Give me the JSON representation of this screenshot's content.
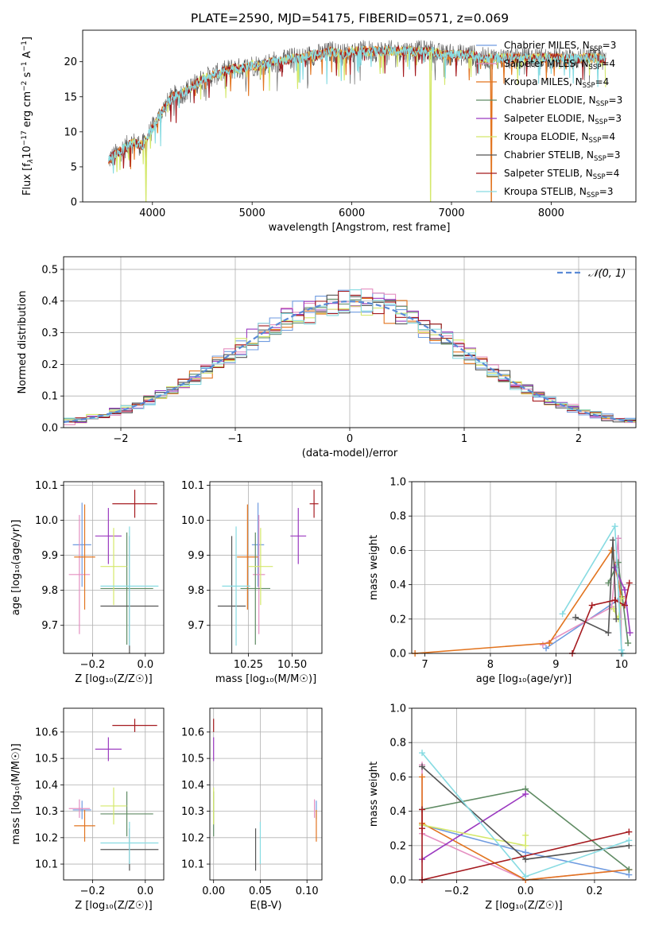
{
  "figure": {
    "title": "PLATE=2590, MJD=54175, FIBERID=0571, z=0.069"
  },
  "model_colors": {
    "Chabrier MILES": "#6f9be0",
    "Salpeter MILES": "#e58fc1",
    "Kroupa MILES": "#e2741f",
    "Chabrier ELODIE": "#5f8b63",
    "Salpeter ELODIE": "#9b39c0",
    "Kroupa ELODIE": "#d4e86b",
    "Chabrier STELIB": "#555555",
    "Salpeter STELIB": "#a51a1f",
    "Kroupa STELIB": "#87dbe2"
  },
  "chart_data": [
    {
      "id": "spectrum",
      "type": "line",
      "xlabel": "wavelength [Angstrom, rest frame]",
      "ylabel_parts": {
        "a": "Flux [f",
        "b": "λ",
        "c": "10",
        "d": "−17",
        "e": " erg cm",
        "f": "−2",
        "g": " s",
        "h": "−1",
        "i": " A",
        "j": "−1",
        "k": "]"
      },
      "xlim": [
        3300,
        8850
      ],
      "ylim": [
        0,
        24.5
      ],
      "xticks": [
        4000,
        5000,
        6000,
        7000,
        8000
      ],
      "yticks": [
        0,
        5,
        10,
        15,
        20
      ],
      "legend_position": "top-right",
      "legend": [
        {
          "name": "Chabrier MILES",
          "nssp": "3",
          "color": "#6f9be0"
        },
        {
          "name": "Salpeter MILES",
          "nssp": "4",
          "color": "#e58fc1"
        },
        {
          "name": "Kroupa MILES",
          "nssp": "4",
          "color": "#e2741f"
        },
        {
          "name": "Chabrier ELODIE",
          "nssp": "3",
          "color": "#5f8b63"
        },
        {
          "name": "Salpeter ELODIE",
          "nssp": "3",
          "color": "#9b39c0"
        },
        {
          "name": "Kroupa ELODIE",
          "nssp": "4",
          "color": "#d4e86b"
        },
        {
          "name": "Chabrier STELIB",
          "nssp": "3",
          "color": "#555555"
        },
        {
          "name": "Salpeter STELIB",
          "nssp": "4",
          "color": "#a51a1f"
        },
        {
          "name": "Kroupa STELIB",
          "nssp": "3",
          "color": "#87dbe2"
        }
      ],
      "continuum": {
        "x": [
          3560,
          3700,
          3800,
          3900,
          4000,
          4100,
          4200,
          4300,
          4400,
          4500,
          4600,
          4700,
          4800,
          4900,
          5000,
          5100,
          5200,
          5300,
          5400,
          5500,
          5600,
          5700,
          5800,
          5900,
          6000,
          6100,
          6200,
          6300,
          6400,
          6500,
          6600,
          6700,
          6800,
          6900,
          7000,
          7100,
          7200,
          7300,
          7400,
          7500,
          7600,
          7700,
          7800,
          7900,
          8000,
          8100,
          8200,
          8300,
          8400,
          8500,
          8550
        ],
        "y": [
          6,
          7.5,
          8.5,
          8,
          10.5,
          13,
          15,
          15.5,
          16.5,
          17.5,
          18,
          18.5,
          19,
          19,
          19.5,
          19.5,
          20,
          20,
          20.5,
          20.5,
          21,
          21,
          21.5,
          21,
          21.5,
          21.5,
          21.5,
          21.5,
          21.5,
          21.5,
          21.5,
          21.5,
          21.5,
          21,
          21,
          21,
          21,
          20.5,
          20.5,
          20.5,
          20.5,
          20.5,
          20.5,
          20.5,
          20.5,
          20.5,
          20.5,
          20.5,
          20.5,
          20.5,
          20
        ]
      },
      "annotations_dips": [
        {
          "x": 3935,
          "y": 0,
          "series": "Kroupa ELODIE"
        },
        {
          "x": 6790,
          "y": 0,
          "series": "Kroupa ELODIE"
        },
        {
          "x": 7400,
          "y": 0,
          "series": "Kroupa MILES"
        }
      ]
    },
    {
      "id": "residuals",
      "type": "bar",
      "xlabel": "(data-model)/error",
      "ylabel": "Normed distribution",
      "xlim": [
        -2.5,
        2.5
      ],
      "ylim": [
        0,
        0.54
      ],
      "xticks": [
        -2,
        -1,
        0,
        1,
        2
      ],
      "yticks": [
        0.0,
        0.1,
        0.2,
        0.3,
        0.4,
        0.5
      ],
      "grid": true,
      "legend_position": "top-right",
      "reference": {
        "name": "𝒩(0, 1)",
        "color": "#5a8ad6",
        "mu": 0,
        "sigma": 1
      },
      "bin_width": 0.1
    },
    {
      "id": "age-vs-Z",
      "type": "scatter",
      "xlabel": "Z [log₁₀(Z/Z☉)]",
      "ylabel": "age  [log₁₀(age/yr)]",
      "xlim": [
        -0.31,
        0.07
      ],
      "ylim": [
        9.62,
        10.11
      ],
      "xticks": [
        -0.2,
        0.0
      ],
      "xticklabels": [
        "−0.2",
        "0.0"
      ],
      "yticks": [
        9.7,
        9.8,
        9.9,
        10.0,
        10.1
      ],
      "grid": true,
      "points": [
        {
          "model": "Chabrier MILES",
          "x": -0.24,
          "xerr": 0.035,
          "y": 9.93,
          "yerr": 0.12
        },
        {
          "model": "Salpeter MILES",
          "x": -0.25,
          "xerr": 0.04,
          "y": 9.845,
          "yerr": 0.17
        },
        {
          "model": "Kroupa MILES",
          "x": -0.23,
          "xerr": 0.04,
          "y": 9.895,
          "yerr": 0.15
        },
        {
          "model": "Chabrier ELODIE",
          "x": -0.07,
          "xerr": 0.1,
          "y": 9.805,
          "yerr": 0.16
        },
        {
          "model": "Salpeter ELODIE",
          "x": -0.14,
          "xerr": 0.05,
          "y": 9.955,
          "yerr": 0.08
        },
        {
          "model": "Kroupa ELODIE",
          "x": -0.12,
          "xerr": 0.05,
          "y": 9.868,
          "yerr": 0.11
        },
        {
          "model": "Chabrier STELIB",
          "x": -0.06,
          "xerr": 0.11,
          "y": 9.755,
          "yerr": 0.2
        },
        {
          "model": "Salpeter STELIB",
          "x": -0.04,
          "xerr": 0.085,
          "y": 10.047,
          "yerr": 0.04
        },
        {
          "model": "Kroupa STELIB",
          "x": -0.06,
          "xerr": 0.11,
          "y": 9.812,
          "yerr": 0.17
        }
      ]
    },
    {
      "id": "age-vs-mass",
      "type": "scatter",
      "xlabel": "mass [log₁₀(M/M☉)]",
      "ylabel": "",
      "xlim": [
        10.03,
        10.67
      ],
      "ylim": [
        9.62,
        10.11
      ],
      "xticks": [
        10.25,
        10.5
      ],
      "xticklabels": [
        "10.25",
        "10.50"
      ],
      "yticks": [
        9.7,
        9.8,
        9.9,
        10.0,
        10.1
      ],
      "grid": true,
      "points": [
        {
          "model": "Chabrier MILES",
          "x": 10.305,
          "xerr": 0.035,
          "y": 9.93,
          "yerr": 0.12
        },
        {
          "model": "Salpeter MILES",
          "x": 10.31,
          "xerr": 0.035,
          "y": 9.845,
          "yerr": 0.17
        },
        {
          "model": "Kroupa MILES",
          "x": 10.245,
          "xerr": 0.06,
          "y": 9.895,
          "yerr": 0.15
        },
        {
          "model": "Chabrier ELODIE",
          "x": 10.29,
          "xerr": 0.085,
          "y": 9.805,
          "yerr": 0.16
        },
        {
          "model": "Salpeter ELODIE",
          "x": 10.535,
          "xerr": 0.045,
          "y": 9.955,
          "yerr": 0.08
        },
        {
          "model": "Kroupa ELODIE",
          "x": 10.32,
          "xerr": 0.07,
          "y": 9.868,
          "yerr": 0.11
        },
        {
          "model": "Chabrier STELIB",
          "x": 10.155,
          "xerr": 0.08,
          "y": 9.755,
          "yerr": 0.2
        },
        {
          "model": "Salpeter STELIB",
          "x": 10.625,
          "xerr": 0.025,
          "y": 10.047,
          "yerr": 0.04
        },
        {
          "model": "Kroupa STELIB",
          "x": 10.18,
          "xerr": 0.08,
          "y": 9.812,
          "yerr": 0.17
        }
      ]
    },
    {
      "id": "mass-weight-vs-age",
      "type": "line",
      "xlabel": "age  [log₁₀(age/yr)]",
      "ylabel": "mass weight",
      "xlim": [
        6.8,
        10.22
      ],
      "ylim": [
        0,
        1
      ],
      "xticks": [
        7,
        8,
        9,
        10
      ],
      "yticks": [
        0.0,
        0.2,
        0.4,
        0.6,
        0.8,
        1.0
      ],
      "grid": true,
      "series": [
        {
          "name": "Chabrier MILES",
          "color": "#6f9be0",
          "x": [
            8.85,
            9.98,
            9.95
          ],
          "y": [
            0.03,
            0.32,
            0.67
          ]
        },
        {
          "name": "Salpeter MILES",
          "color": "#e58fc1",
          "x": [
            8.8,
            9.85,
            9.95,
            10.0
          ],
          "y": [
            0.05,
            0.27,
            0.67,
            0.02
          ]
        },
        {
          "name": "Kroupa MILES",
          "color": "#e2741f",
          "x": [
            6.85,
            8.9,
            9.85,
            10.0
          ],
          "y": [
            0.0,
            0.06,
            0.6,
            0.33
          ]
        },
        {
          "name": "Chabrier ELODIE",
          "color": "#5f8b63",
          "x": [
            9.8,
            9.95,
            10.1
          ],
          "y": [
            0.41,
            0.53,
            0.06
          ]
        },
        {
          "name": "Salpeter ELODIE",
          "color": "#9b39c0",
          "x": [
            9.9,
            10.05,
            10.13
          ],
          "y": [
            0.5,
            0.37,
            0.12
          ]
        },
        {
          "name": "Kroupa ELODIE",
          "color": "#d4e86b",
          "x": [
            9.88,
            9.95,
            10.0
          ],
          "y": [
            0.26,
            0.2,
            0.32
          ]
        },
        {
          "name": "Chabrier STELIB",
          "color": "#555555",
          "x": [
            9.3,
            9.8,
            9.87,
            9.92
          ],
          "y": [
            0.21,
            0.12,
            0.66,
            0.2
          ]
        },
        {
          "name": "Salpeter STELIB",
          "color": "#a51a1f",
          "x": [
            9.25,
            9.55,
            9.9,
            10.05,
            10.12
          ],
          "y": [
            0.0,
            0.28,
            0.31,
            0.28,
            0.41
          ]
        },
        {
          "name": "Kroupa STELIB",
          "color": "#87dbe2",
          "x": [
            9.1,
            9.9,
            10.0,
            10.02
          ],
          "y": [
            0.23,
            0.74,
            0.02,
            0.0
          ]
        }
      ]
    },
    {
      "id": "mass-vs-Z",
      "type": "scatter",
      "xlabel": "Z [log₁₀(Z/Z☉)]",
      "ylabel": "mass [log₁₀(M/M☉)]",
      "xlim": [
        -0.31,
        0.07
      ],
      "ylim": [
        10.04,
        10.69
      ],
      "xticks": [
        -0.2,
        0.0
      ],
      "xticklabels": [
        "−0.2",
        "0.0"
      ],
      "yticks": [
        10.1,
        10.2,
        10.3,
        10.4,
        10.5,
        10.6
      ],
      "grid": true,
      "points": [
        {
          "model": "Chabrier MILES",
          "x": -0.24,
          "xerr": 0.035,
          "y": 10.305,
          "yerr": 0.035
        },
        {
          "model": "Salpeter MILES",
          "x": -0.25,
          "xerr": 0.04,
          "y": 10.31,
          "yerr": 0.035
        },
        {
          "model": "Kroupa MILES",
          "x": -0.23,
          "xerr": 0.04,
          "y": 10.245,
          "yerr": 0.06
        },
        {
          "model": "Chabrier ELODIE",
          "x": -0.07,
          "xerr": 0.1,
          "y": 10.29,
          "yerr": 0.085
        },
        {
          "model": "Salpeter ELODIE",
          "x": -0.14,
          "xerr": 0.05,
          "y": 10.535,
          "yerr": 0.045
        },
        {
          "model": "Kroupa ELODIE",
          "x": -0.12,
          "xerr": 0.05,
          "y": 10.32,
          "yerr": 0.07
        },
        {
          "model": "Chabrier STELIB",
          "x": -0.06,
          "xerr": 0.11,
          "y": 10.155,
          "yerr": 0.08
        },
        {
          "model": "Salpeter STELIB",
          "x": -0.04,
          "xerr": 0.085,
          "y": 10.625,
          "yerr": 0.025
        },
        {
          "model": "Kroupa STELIB",
          "x": -0.06,
          "xerr": 0.11,
          "y": 10.18,
          "yerr": 0.08
        }
      ]
    },
    {
      "id": "mass-vs-ebv",
      "type": "scatter",
      "xlabel": "E(B-V)",
      "ylabel": "",
      "xlim": [
        -0.004,
        0.116
      ],
      "ylim": [
        10.04,
        10.69
      ],
      "xticks": [
        0.0,
        0.05,
        0.1
      ],
      "xticklabels": [
        "0.00",
        "0.05",
        "0.10"
      ],
      "yticks": [
        10.1,
        10.2,
        10.3,
        10.4,
        10.5,
        10.6
      ],
      "grid": true,
      "points": [
        {
          "model": "Chabrier MILES",
          "x": 0.11,
          "xerr": 0.0,
          "y": 10.305,
          "yerr": 0.035
        },
        {
          "model": "Salpeter MILES",
          "x": 0.108,
          "xerr": 0.0,
          "y": 10.31,
          "yerr": 0.035
        },
        {
          "model": "Kroupa MILES",
          "x": 0.11,
          "xerr": 0.0,
          "y": 10.245,
          "yerr": 0.06
        },
        {
          "model": "Chabrier ELODIE",
          "x": 0.0,
          "xerr": 0.0,
          "y": 10.29,
          "yerr": 0.085
        },
        {
          "model": "Salpeter ELODIE",
          "x": 0.0,
          "xerr": 0.0,
          "y": 10.535,
          "yerr": 0.045
        },
        {
          "model": "Kroupa ELODIE",
          "x": 0.0,
          "xerr": 0.0,
          "y": 10.32,
          "yerr": 0.07
        },
        {
          "model": "Chabrier STELIB",
          "x": 0.045,
          "xerr": 0.0,
          "y": 10.155,
          "yerr": 0.08
        },
        {
          "model": "Salpeter STELIB",
          "x": 0.0,
          "xerr": 0.0,
          "y": 10.625,
          "yerr": 0.025
        },
        {
          "model": "Kroupa STELIB",
          "x": 0.05,
          "xerr": 0.0,
          "y": 10.18,
          "yerr": 0.08
        }
      ]
    },
    {
      "id": "mass-weight-vs-Z",
      "type": "line",
      "xlabel": "Z [log₁₀(Z/Z☉)]",
      "ylabel": "mass weight",
      "xlim": [
        -0.33,
        0.32
      ],
      "ylim": [
        0,
        1
      ],
      "xticks": [
        -0.2,
        0.0,
        0.2
      ],
      "xticklabels": [
        "−0.2",
        "0.0",
        "0.2"
      ],
      "yticks": [
        0.0,
        0.2,
        0.4,
        0.6,
        0.8,
        1.0
      ],
      "grid": true,
      "series": [
        {
          "name": "Chabrier MILES",
          "color": "#6f9be0",
          "x": [
            -0.3,
            0.0,
            0.3
          ],
          "y": [
            0.32,
            0.16,
            0.03
          ]
        },
        {
          "name": "Salpeter MILES",
          "color": "#e58fc1",
          "x": [
            -0.3,
            -0.3,
            0.0,
            0.3
          ],
          "y": [
            0.67,
            0.27,
            0.0,
            0.06
          ]
        },
        {
          "name": "Kroupa MILES",
          "color": "#e2741f",
          "x": [
            -0.3,
            -0.3,
            0.0,
            0.3
          ],
          "y": [
            0.6,
            0.33,
            0.0,
            0.06
          ]
        },
        {
          "name": "Chabrier ELODIE",
          "color": "#5f8b63",
          "x": [
            -0.3,
            0.0,
            0.3
          ],
          "y": [
            0.41,
            0.53,
            0.06
          ]
        },
        {
          "name": "Salpeter ELODIE",
          "color": "#9b39c0",
          "x": [
            -0.3,
            0.0
          ],
          "y": [
            0.12,
            0.5
          ]
        },
        {
          "name": "Kroupa ELODIE",
          "color": "#d4e86b",
          "x": [
            -0.3,
            0.0,
            0.0
          ],
          "y": [
            0.32,
            0.2,
            0.26
          ]
        },
        {
          "name": "Chabrier STELIB",
          "color": "#555555",
          "x": [
            -0.3,
            0.0,
            0.3
          ],
          "y": [
            0.66,
            0.12,
            0.2
          ]
        },
        {
          "name": "Salpeter STELIB",
          "color": "#a51a1f",
          "x": [
            -0.3,
            -0.3,
            -0.3,
            0.3
          ],
          "y": [
            0.41,
            0.3,
            0.0,
            0.28
          ]
        },
        {
          "name": "Kroupa STELIB",
          "color": "#87dbe2",
          "x": [
            -0.3,
            0.0,
            0.3
          ],
          "y": [
            0.74,
            0.02,
            0.23
          ]
        }
      ]
    }
  ]
}
